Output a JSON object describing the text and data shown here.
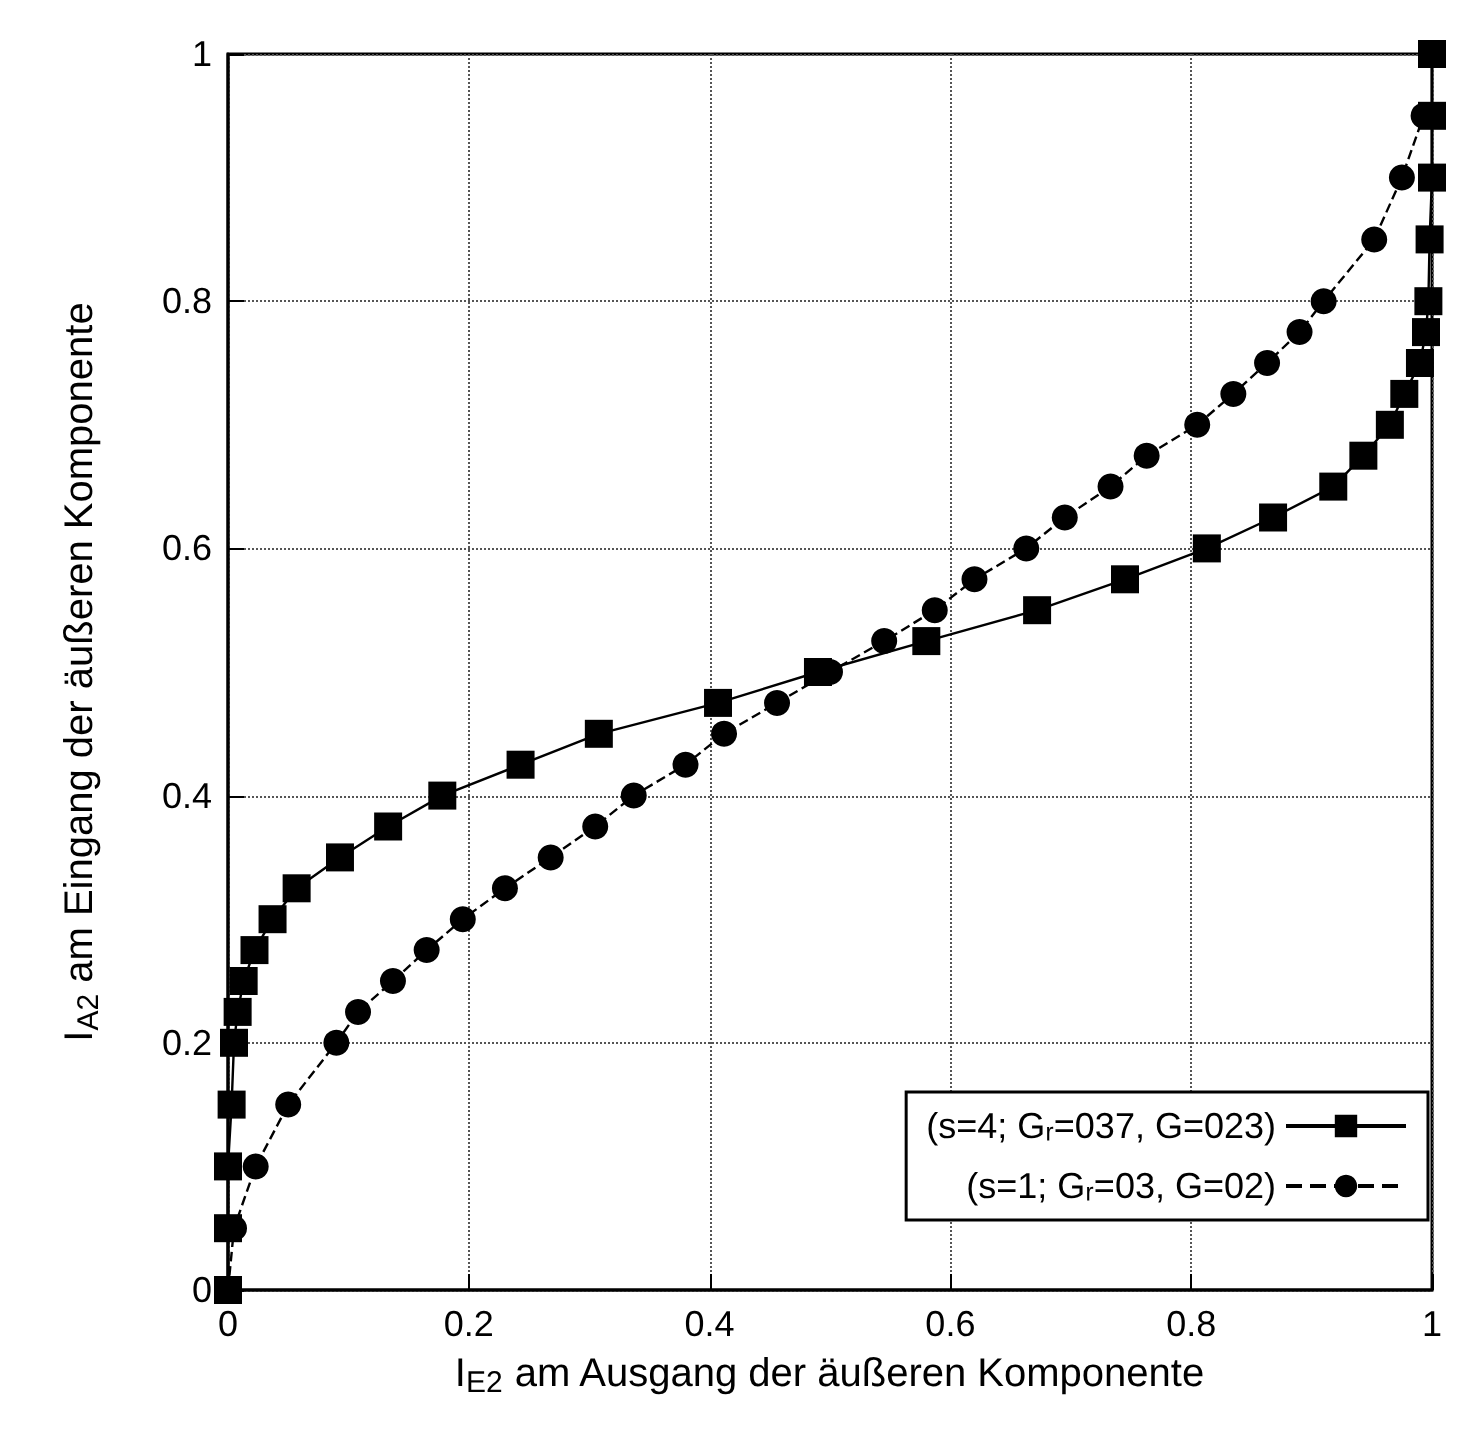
{
  "chart_data": {
    "type": "line",
    "xlabel": "I$_{E2}$ am Ausgang der äußeren Komponente",
    "ylabel": "I$_{A2}$ am Eingang der äußeren Komponente",
    "xlim": [
      0,
      1
    ],
    "ylim": [
      0,
      1
    ],
    "xticks": [
      0,
      0.2,
      0.4,
      0.6,
      0.8,
      1
    ],
    "yticks": [
      0,
      0.2,
      0.4,
      0.6,
      0.8,
      1
    ],
    "grid": true,
    "legend": "bottom right",
    "series": [
      {
        "name": "(s=4; Gᵣ=037, G=023)",
        "color": "#000000",
        "marker": "square",
        "line_style": "solid",
        "x": [
          0,
          0,
          0,
          0.003,
          0.005,
          0.008,
          0.013,
          0.022,
          0.037,
          0.057,
          0.093,
          0.133,
          0.178,
          0.243,
          0.308,
          0.407,
          0.49,
          0.58,
          0.672,
          0.745,
          0.813,
          0.868,
          0.918,
          0.943,
          0.965,
          0.977,
          0.99,
          0.995,
          0.997,
          0.998,
          1,
          1,
          1
        ],
        "values": [
          0,
          0.05,
          0.1,
          0.15,
          0.2,
          0.225,
          0.25,
          0.275,
          0.3,
          0.325,
          0.35,
          0.375,
          0.4,
          0.425,
          0.45,
          0.475,
          0.5,
          0.525,
          0.55,
          0.575,
          0.6,
          0.625,
          0.65,
          0.675,
          0.7,
          0.725,
          0.75,
          0.775,
          0.8,
          0.85,
          0.9,
          0.95,
          1
        ]
      },
      {
        "name": "(s=1; Gᵣ=03, G=02)",
        "color": "#000000",
        "marker": "circle",
        "line_style": "dashed",
        "x": [
          0,
          0.005,
          0.023,
          0.05,
          0.09,
          0.108,
          0.137,
          0.165,
          0.195,
          0.23,
          0.268,
          0.305,
          0.337,
          0.38,
          0.412,
          0.456,
          0.5,
          0.545,
          0.587,
          0.62,
          0.663,
          0.695,
          0.733,
          0.763,
          0.805,
          0.835,
          0.863,
          0.89,
          0.91,
          0.952,
          0.975,
          0.993
        ],
        "values": [
          0,
          0.05,
          0.1,
          0.15,
          0.2,
          0.225,
          0.25,
          0.275,
          0.3,
          0.325,
          0.35,
          0.375,
          0.4,
          0.425,
          0.45,
          0.475,
          0.5,
          0.525,
          0.55,
          0.575,
          0.6,
          0.625,
          0.65,
          0.675,
          0.7,
          0.725,
          0.75,
          0.775,
          0.8,
          0.85,
          0.9,
          0.95
        ]
      }
    ]
  }
}
